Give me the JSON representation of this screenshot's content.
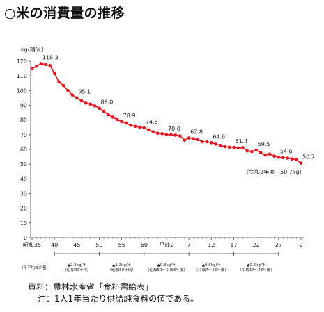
{
  "page": {
    "title": "○米の消費量の推移",
    "source": "資料：農林水産省「食料需給表」",
    "note": "注：1人1年当たり供給純食料の値である。"
  },
  "chart_data": {
    "type": "line",
    "ylabel": "kg(精米)",
    "ylim": [
      0,
      120
    ],
    "y_ticks": [
      "0",
      "10",
      "20",
      "30",
      "40",
      "50",
      "60",
      "70",
      "80",
      "90",
      "100",
      "110",
      "120"
    ],
    "grid": false,
    "x_tick_labels": [
      "昭和35",
      "40",
      "45",
      "50",
      "55",
      "60",
      "平成2",
      "7",
      "12",
      "17",
      "22",
      "27",
      "2"
    ],
    "x": [
      "S35",
      "S36",
      "S37",
      "S38",
      "S39",
      "S40",
      "S41",
      "S42",
      "S43",
      "S44",
      "S45",
      "S46",
      "S47",
      "S48",
      "S49",
      "S50",
      "S51",
      "S52",
      "S53",
      "S54",
      "S55",
      "S56",
      "S57",
      "S58",
      "S59",
      "S60",
      "S61",
      "S62",
      "S63",
      "H1",
      "H2",
      "H3",
      "H4",
      "H5",
      "H6",
      "H7",
      "H8",
      "H9",
      "H10",
      "H11",
      "H12",
      "H13",
      "H14",
      "H15",
      "H16",
      "H17",
      "H18",
      "H19",
      "H20",
      "H21",
      "H22",
      "H23",
      "H24",
      "H25",
      "H26",
      "H27",
      "H28",
      "H29",
      "H30",
      "R1",
      "R2"
    ],
    "series": [
      {
        "color": "#e8141e",
        "values": [
          114.9,
          116.6,
          118.3,
          117.7,
          117.0,
          111.7,
          105.8,
          103.4,
          100.1,
          97.0,
          95.1,
          93.1,
          91.5,
          90.8,
          89.6,
          88.0,
          86.0,
          83.6,
          82.0,
          80.3,
          78.9,
          77.9,
          76.4,
          75.7,
          75.2,
          74.6,
          73.3,
          72.0,
          71.0,
          70.7,
          70.0,
          70.0,
          69.7,
          69.2,
          66.3,
          67.8,
          67.3,
          66.7,
          65.2,
          65.2,
          64.6,
          63.6,
          62.7,
          61.9,
          61.5,
          61.4,
          61.0,
          61.2,
          59.0,
          58.5,
          59.5,
          57.8,
          56.2,
          56.8,
          55.5,
          54.6,
          54.4,
          54.1,
          53.5,
          53.0,
          50.7
        ]
      }
    ],
    "data_labels": [
      {
        "x": "S37",
        "text": "118.3"
      },
      {
        "x": "S45",
        "text": "95.1"
      },
      {
        "x": "S50",
        "text": "88.0"
      },
      {
        "x": "S55",
        "text": "78.9"
      },
      {
        "x": "S60",
        "text": "74.6"
      },
      {
        "x": "H2",
        "text": "70.0"
      },
      {
        "x": "H7",
        "text": "67.8"
      },
      {
        "x": "H12",
        "text": "64.6"
      },
      {
        "x": "H17",
        "text": "61.4"
      },
      {
        "x": "H22",
        "text": "59.5"
      },
      {
        "x": "H27",
        "text": "54.6"
      },
      {
        "x": "R2",
        "text": "50.7"
      }
    ],
    "annotation": "（令和2年度　50.7kg）",
    "avg_decrease": {
      "label": "（年平均減少量）",
      "periods": [
        {
          "rate": "▲2.2kg/年",
          "span": "（昭和40年代）"
        },
        {
          "rate": "▲1.3kg/年",
          "span": "（昭和50年代）"
        },
        {
          "rate": "▲0.8kg/年",
          "span": "（昭和60～平成6年度）"
        },
        {
          "rate": "▲0.6kg/年",
          "span": "（平成7～16年度）"
        },
        {
          "rate": "▲0.6kg/年",
          "span": "（平成17～26年度）"
        }
      ]
    }
  }
}
